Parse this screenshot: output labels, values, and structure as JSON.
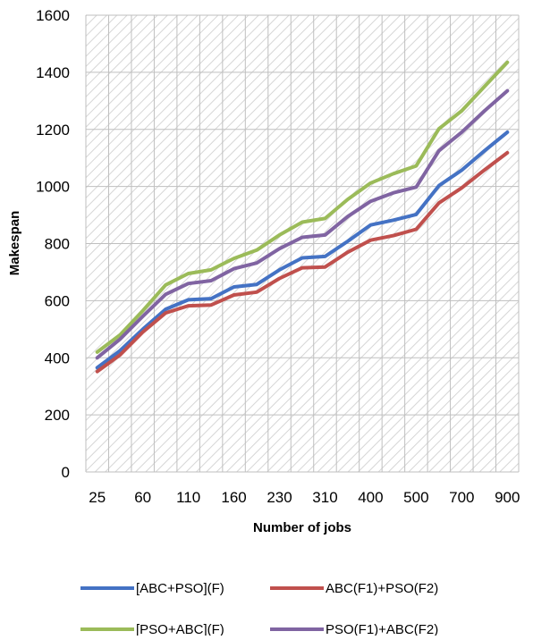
{
  "chart_data": {
    "type": "line",
    "xlabel": "Number of jobs",
    "ylabel": "Makespan",
    "ylim": [
      0,
      1600
    ],
    "yticks": [
      0,
      200,
      400,
      600,
      800,
      1000,
      1200,
      1400,
      1600
    ],
    "grid": "hatched plot area",
    "legend_position": "bottom",
    "x": [
      "25",
      "40",
      "60",
      "80",
      "110",
      "135",
      "160",
      "190",
      "230",
      "270",
      "310",
      "350",
      "400",
      "450",
      "500",
      "600",
      "700",
      "800",
      "900"
    ],
    "xtick_labels": [
      "25",
      "",
      "60",
      "",
      "110",
      "",
      "160",
      "",
      "230",
      "",
      "310",
      "",
      "400",
      "",
      "500",
      "",
      "700",
      "",
      "900"
    ],
    "series": [
      {
        "name": "[ABC+PSO](F)",
        "color": "#4472C4",
        "values": [
          365,
          425,
          500,
          570,
          603,
          607,
          648,
          657,
          708,
          750,
          755,
          808,
          865,
          882,
          902,
          1003,
          1057,
          1125,
          1190
        ]
      },
      {
        "name": "ABC(F1)+PSO(F2)",
        "color": "#C0504D",
        "values": [
          352,
          410,
          490,
          557,
          582,
          585,
          620,
          630,
          678,
          715,
          718,
          770,
          812,
          828,
          850,
          942,
          995,
          1058,
          1118
        ]
      },
      {
        "name": "[PSO+ABC](F)",
        "color": "#9BBB59",
        "values": [
          420,
          480,
          565,
          655,
          695,
          708,
          748,
          777,
          830,
          875,
          888,
          955,
          1012,
          1045,
          1072,
          1202,
          1265,
          1350,
          1435
        ]
      },
      {
        "name": "PSO(F1)+ABC(F2)",
        "color": "#8064A2",
        "values": [
          400,
          465,
          545,
          622,
          660,
          670,
          712,
          732,
          782,
          822,
          830,
          895,
          948,
          978,
          998,
          1125,
          1190,
          1265,
          1335
        ]
      }
    ]
  }
}
